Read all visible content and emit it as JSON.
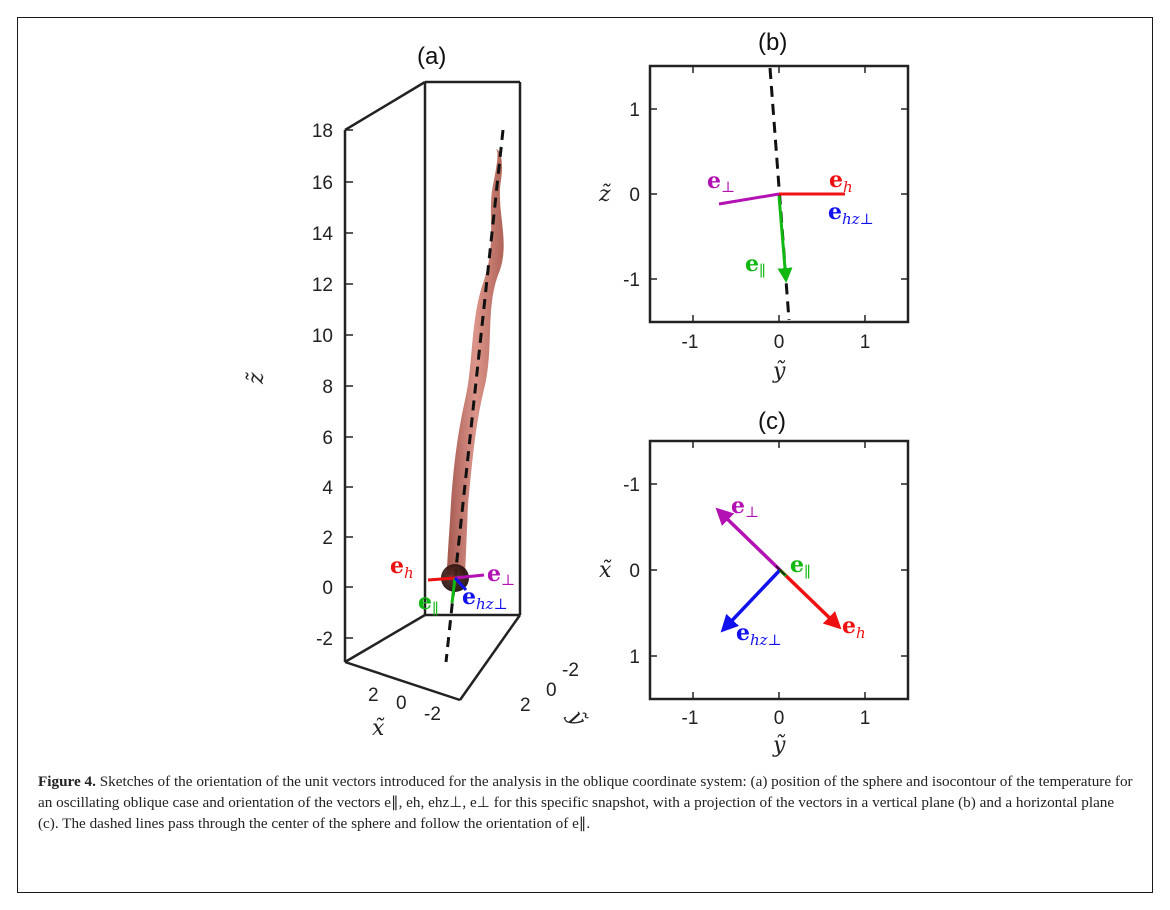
{
  "figure": {
    "panel_a_label": "(a)",
    "panel_b_label": "(b)",
    "panel_c_label": "(c)",
    "caption_lead": "Figure 4.",
    "caption_text": "Sketches of the orientation of the unit vectors introduced for the analysis in the oblique coordinate system: (a) position of the sphere and isocontour of the temperature for an oscillating oblique case and orientation of the vectors e∥, eh, ehz⊥, e⊥ for this specific snapshot, with a projection of the vectors in a vertical plane (b) and a horizontal plane (c). The dashed lines pass through the center of the sphere and follow the orientation of e∥."
  },
  "panel_a": {
    "z_label": "z̃",
    "x_label": "x̃",
    "y_label": "ỹ",
    "z_ticks": [
      "18",
      "16",
      "14",
      "12",
      "10",
      "8",
      "6",
      "4",
      "2",
      "0",
      "-2"
    ],
    "x_ticks": [
      "2",
      "0",
      "-2"
    ],
    "y_ticks": [
      "-2",
      "0",
      "2"
    ]
  },
  "panel_b": {
    "y_axis_label": "z̃",
    "x_axis_label": "ỹ",
    "y_ticks": [
      "1",
      "0",
      "-1"
    ],
    "x_ticks": [
      "-1",
      "0",
      "1"
    ]
  },
  "panel_c": {
    "y_axis_label": "x̃",
    "x_axis_label": "ỹ",
    "y_ticks": [
      "-1",
      "0",
      "1"
    ],
    "x_ticks": [
      "-1",
      "0",
      "1"
    ]
  },
  "vectors": {
    "e_par": {
      "base": "e",
      "sub": "∥",
      "color": "#11b811"
    },
    "e_h": {
      "base": "e",
      "sub": "h",
      "color": "#ee1111"
    },
    "e_hzperp": {
      "base": "e",
      "sub": "hz⊥",
      "color": "#1111ee"
    },
    "e_perp": {
      "base": "e",
      "sub": "⊥",
      "color": "#b311b3"
    }
  },
  "chart_data": [
    {
      "type": "other",
      "panel": "(b)",
      "description_axes": "vertical plane projection",
      "xlim": [
        -1.5,
        1.5
      ],
      "ylim": [
        -1.5,
        1.5
      ],
      "vectors": [
        {
          "name": "e_h",
          "from": [
            0,
            0
          ],
          "to": [
            0.75,
            0
          ]
        },
        {
          "name": "e_perp",
          "from": [
            0,
            0
          ],
          "to": [
            -0.7,
            -0.12
          ]
        },
        {
          "name": "e_par",
          "from": [
            0,
            0
          ],
          "to": [
            0.06,
            -1.05
          ]
        }
      ],
      "dashed_line": [
        [
          -0.1,
          1.5
        ],
        [
          0.12,
          -1.5
        ]
      ]
    },
    {
      "type": "other",
      "panel": "(c)",
      "xlim": [
        -1.5,
        1.5
      ],
      "ylim": [
        1.5,
        -1.5
      ],
      "vectors": [
        {
          "name": "e_perp",
          "from": [
            0,
            0
          ],
          "to": [
            -0.73,
            -0.72
          ]
        },
        {
          "name": "e_h",
          "from": [
            0,
            0
          ],
          "to": [
            0.73,
            0.7
          ]
        },
        {
          "name": "e_hzperp",
          "from": [
            0,
            0
          ],
          "to": [
            -0.68,
            0.72
          ]
        },
        {
          "name": "e_par",
          "from": [
            0,
            0
          ],
          "to": [
            0.07,
            0.07
          ]
        }
      ]
    }
  ]
}
